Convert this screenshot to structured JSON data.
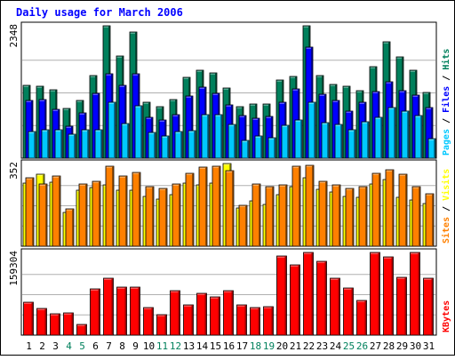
{
  "colors": {
    "hits": "#00805c",
    "files": "#0000ff",
    "pages": "#00c8ff",
    "visits": "#ffff00",
    "sites": "#ff8000",
    "kbytes": "#ff0000",
    "title": "#0000ff",
    "weekend": "#00805c",
    "weekday": "#000000",
    "frame_bg": "#c0c0c0"
  },
  "chart_data": {
    "type": "bar",
    "title": "Daily usage for March 2006",
    "categories": [
      "1",
      "2",
      "3",
      "4",
      "5",
      "6",
      "7",
      "8",
      "9",
      "10",
      "11",
      "12",
      "13",
      "14",
      "15",
      "16",
      "17",
      "18",
      "19",
      "20",
      "21",
      "22",
      "23",
      "24",
      "25",
      "26",
      "27",
      "28",
      "29",
      "30",
      "31"
    ],
    "weekend_days": [
      "4",
      "5",
      "11",
      "12",
      "18",
      "19",
      "25",
      "26"
    ],
    "panels": [
      {
        "name": "hits-files-pages",
        "max_label": "2348",
        "ylim": [
          0,
          2348
        ],
        "legend": [
          "Pages",
          "Files",
          "Hits"
        ],
        "series": [
          {
            "name": "Hits",
            "values": [
              1300,
              1280,
              1220,
              880,
              1020,
              1460,
              2348,
              1820,
              2230,
              990,
              910,
              1040,
              1440,
              1560,
              1510,
              1240,
              920,
              960,
              960,
              1380,
              1450,
              2348,
              1460,
              1310,
              1280,
              1190,
              1620,
              2060,
              1790,
              1560,
              1160
            ]
          },
          {
            "name": "Files",
            "values": [
              1020,
              1040,
              860,
              570,
              810,
              1150,
              1500,
              1300,
              1500,
              730,
              670,
              770,
              1110,
              1260,
              1150,
              950,
              750,
              710,
              740,
              1000,
              1230,
              1970,
              1130,
              1020,
              840,
              1000,
              1180,
              1360,
              1200,
              1120,
              900
            ]
          },
          {
            "name": "Pages",
            "values": [
              480,
              500,
              500,
              420,
              510,
              510,
              1000,
              610,
              930,
              450,
              400,
              470,
              490,
              780,
              780,
              600,
              310,
              390,
              370,
              590,
              680,
              1000,
              630,
              600,
              500,
              640,
              720,
              900,
              830,
              750,
              350
            ]
          }
        ]
      },
      {
        "name": "visits-sites",
        "max_label": "352",
        "ylim": [
          0,
          352
        ],
        "legend": [
          "Sites",
          "Visits"
        ],
        "series": [
          {
            "name": "Visits",
            "values": [
              268,
              305,
              272,
              143,
              240,
              250,
              260,
              240,
              240,
              213,
              200,
              220,
              270,
              260,
              270,
              352,
              162,
              192,
              178,
              218,
              255,
              290,
              242,
              232,
              212,
              208,
              265,
              285,
              210,
              198,
              183
            ]
          },
          {
            "name": "Sites",
            "values": [
              293,
              264,
              300,
              158,
              265,
              275,
              340,
              300,
              315,
              255,
              245,
              265,
              310,
              335,
              340,
              320,
              175,
              265,
              255,
              260,
              340,
              345,
              275,
              260,
              245,
              255,
              310,
              325,
              305,
              255,
              225
            ]
          }
        ]
      },
      {
        "name": "kbytes",
        "max_label": "159304",
        "ylim": [
          0,
          159304
        ],
        "legend": [
          "KBytes"
        ],
        "series": [
          {
            "name": "KBytes",
            "values": [
              63800,
              51800,
              40500,
              43400,
              20800,
              89800,
              110100,
              91900,
              91900,
              52700,
              39800,
              85200,
              58400,
              81100,
              73000,
              85200,
              57400,
              52700,
              55000,
              152000,
              135800,
              159304,
              142900,
              110100,
              90100,
              66100,
              159304,
              150900,
              111200,
              159304,
              110100
            ]
          }
        ]
      }
    ]
  }
}
